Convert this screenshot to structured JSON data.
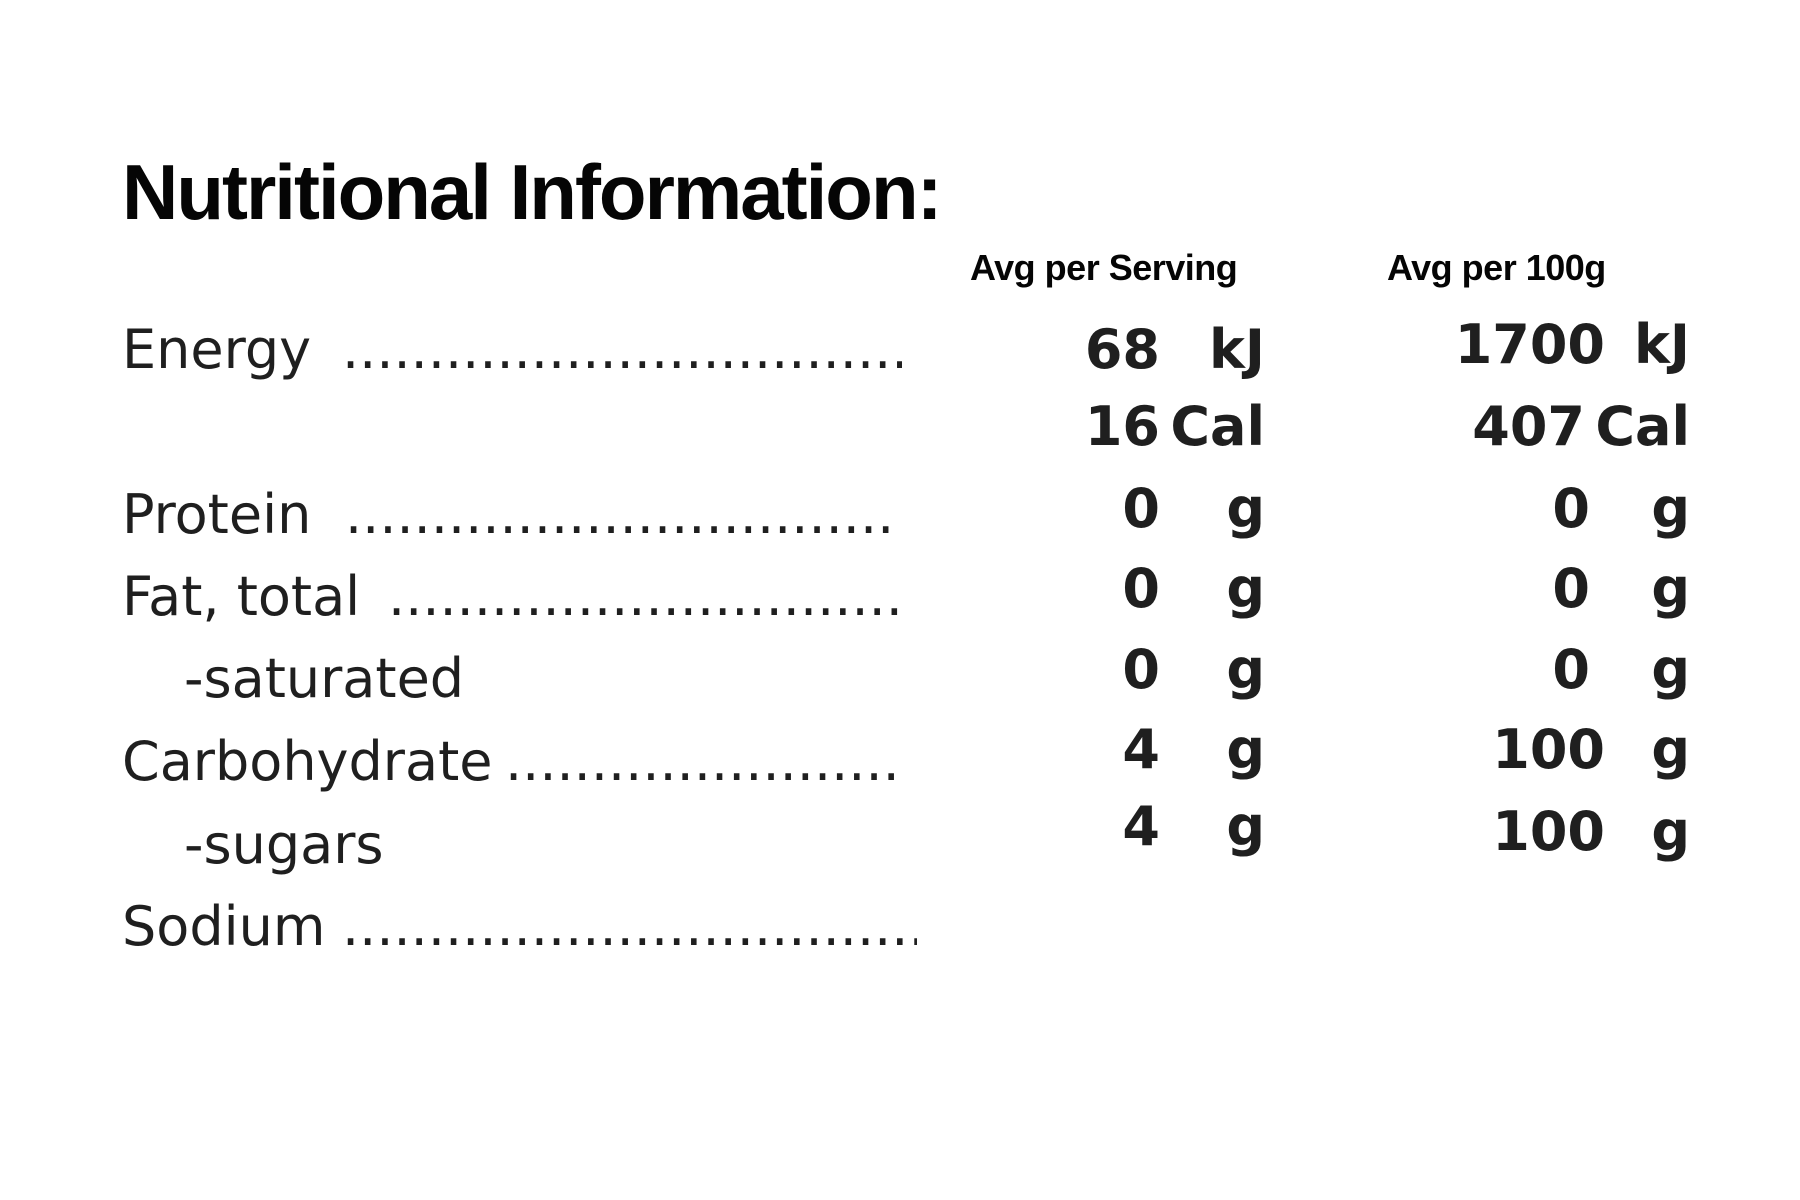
{
  "title": "Nutritional Information:",
  "columns": {
    "per_serving": "Avg per Serving",
    "per_100g": "Avg per 100g"
  },
  "rows": [
    {
      "label": "Energy",
      "dots": "....................................",
      "serving_value": "68",
      "serving_unit": "kJ",
      "per100_value": "1700",
      "per100_unit": "kJ"
    },
    {
      "label": "",
      "dots": "",
      "serving_value": "16",
      "serving_unit": "Cal",
      "per100_value": "407",
      "per100_unit": "Cal"
    },
    {
      "label": "Protein",
      "dots": "...................................",
      "serving_value": "0",
      "serving_unit": "g",
      "per100_value": "0",
      "per100_unit": "g"
    },
    {
      "label": "Fat, total",
      "dots": "..................................",
      "serving_value": "0",
      "serving_unit": "g",
      "per100_value": "0",
      "per100_unit": "g"
    },
    {
      "label": "-saturated",
      "dots": "",
      "serving_value": "0",
      "serving_unit": "g",
      "per100_value": "0",
      "per100_unit": "g"
    },
    {
      "label": "Carbohydrate",
      "dots": ".........................",
      "serving_value": "4",
      "serving_unit": "g",
      "per100_value": "100",
      "per100_unit": "g"
    },
    {
      "label": "-sugars",
      "dots": "",
      "serving_value": "4",
      "serving_unit": "g",
      "per100_value": "100",
      "per100_unit": "g"
    },
    {
      "label": "Sodium",
      "dots": ".....................................",
      "serving_value": "",
      "serving_unit": "",
      "per100_value": "",
      "per100_unit": ""
    }
  ]
}
